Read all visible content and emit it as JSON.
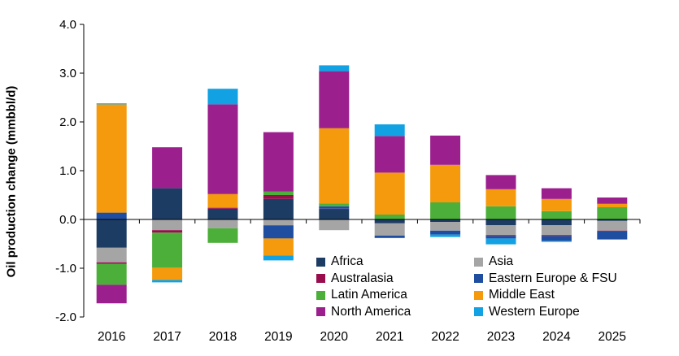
{
  "chart_data": {
    "type": "bar",
    "stacked": true,
    "title": "",
    "xlabel": "",
    "ylabel": "Oil production change (mmbbl/d)",
    "ylim": [
      -2.0,
      4.0
    ],
    "yticks": [
      "-2.0",
      "-1.0",
      "0.0",
      "1.0",
      "2.0",
      "3.0",
      "4.0"
    ],
    "grid": false,
    "legend_position": "bottom-right",
    "categories": [
      "2016",
      "2017",
      "2018",
      "2019",
      "2020",
      "2021",
      "2022",
      "2023",
      "2024",
      "2025"
    ],
    "series": [
      {
        "name": "Africa",
        "color": "#1d3c63",
        "values": [
          -0.58,
          0.64,
          0.22,
          0.42,
          0.2,
          -0.08,
          -0.05,
          -0.12,
          -0.12,
          -0.03
        ]
      },
      {
        "name": "Asia",
        "color": "#a5a5a5",
        "values": [
          -0.3,
          -0.22,
          -0.18,
          -0.12,
          -0.22,
          -0.25,
          -0.18,
          -0.2,
          -0.2,
          -0.2
        ]
      },
      {
        "name": "Australasia",
        "color": "#990d4d",
        "values": [
          -0.03,
          -0.05,
          0.02,
          0.08,
          0.02,
          0.0,
          0.0,
          -0.02,
          -0.02,
          -0.01
        ]
      },
      {
        "name": "Eastern Europe & FSU",
        "color": "#1f4ea0",
        "values": [
          0.14,
          0.0,
          0.0,
          -0.27,
          0.05,
          -0.05,
          -0.08,
          -0.05,
          -0.1,
          -0.17
        ]
      },
      {
        "name": "Latin America",
        "color": "#4caf3a",
        "values": [
          -0.43,
          -0.72,
          -0.3,
          0.07,
          0.06,
          0.1,
          0.35,
          0.27,
          0.17,
          0.25
        ]
      },
      {
        "name": "Middle East",
        "color": "#f59a0c",
        "values": [
          2.22,
          -0.25,
          0.28,
          -0.35,
          1.54,
          0.86,
          0.77,
          0.35,
          0.25,
          0.07
        ]
      },
      {
        "name": "North America",
        "color": "#9c1f8e",
        "values": [
          -0.38,
          0.84,
          1.84,
          1.22,
          1.17,
          0.75,
          0.6,
          0.29,
          0.22,
          0.13
        ]
      },
      {
        "name": "Western Europe",
        "color": "#12a2e3",
        "values": [
          0.02,
          -0.05,
          0.32,
          -0.1,
          0.12,
          0.24,
          -0.05,
          -0.12,
          -0.02,
          0.0
        ]
      }
    ]
  }
}
